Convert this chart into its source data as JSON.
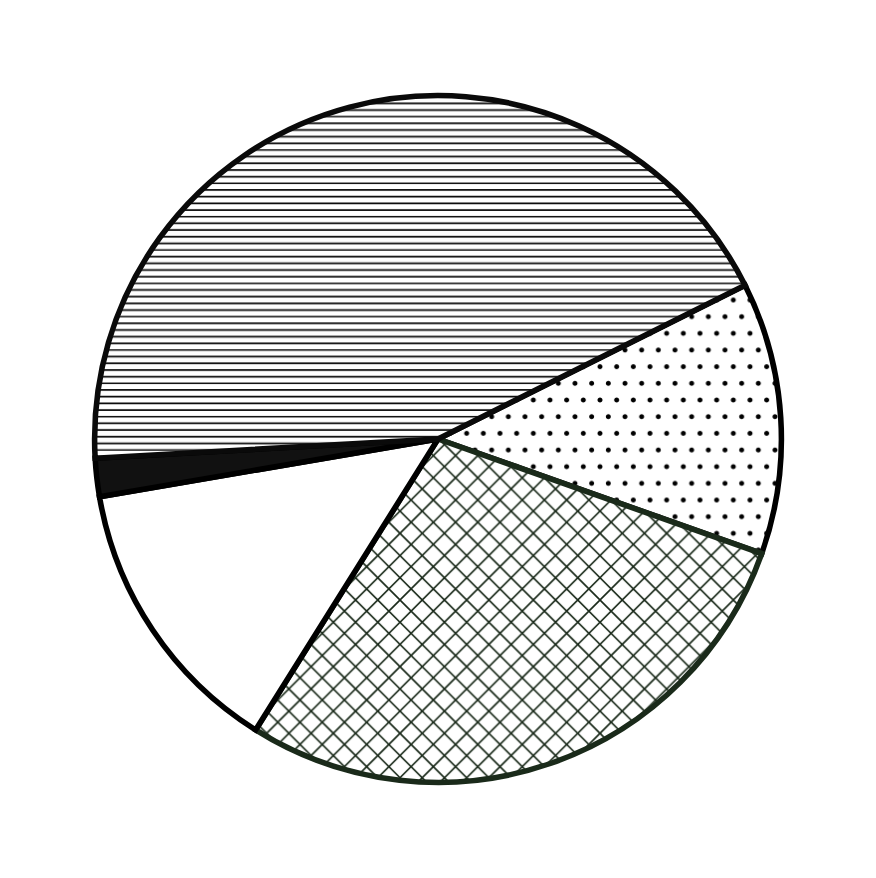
{
  "chart_data": {
    "type": "pie",
    "categories": [
      null,
      null,
      null,
      null,
      null
    ],
    "values": [
      12.8,
      28.5,
      13.4,
      1.8,
      43.5
    ],
    "colors": [
      "#000000",
      "#1a2a1a",
      "#ffffff",
      "#111111",
      "#0a0a0a"
    ]
  }
}
